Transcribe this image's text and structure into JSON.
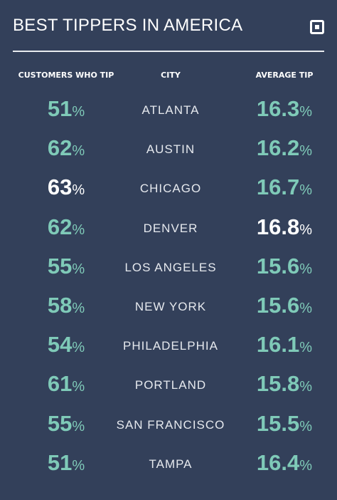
{
  "header": {
    "title": "BEST TIPPERS IN AMERICA"
  },
  "table": {
    "columns": [
      "CUSTOMERS WHO TIP",
      "CITY",
      "AVERAGE TIP"
    ],
    "rows": [
      {
        "customers": {
          "number": "51",
          "unit": "%"
        },
        "city": "ATLANTA",
        "tip": {
          "number": "16.3",
          "unit": "%"
        }
      },
      {
        "customers": {
          "number": "62",
          "unit": "%"
        },
        "city": "AUSTIN",
        "tip": {
          "number": "16.2",
          "unit": "%"
        }
      },
      {
        "customers": {
          "number": "63",
          "unit": "%",
          "highlight": true
        },
        "city": "CHICAGO",
        "tip": {
          "number": "16.7",
          "unit": "%"
        }
      },
      {
        "customers": {
          "number": "62",
          "unit": "%"
        },
        "city": "DENVER",
        "tip": {
          "number": "16.8",
          "unit": "%",
          "highlight": true
        }
      },
      {
        "customers": {
          "number": "55",
          "unit": "%"
        },
        "city": "LOS ANGELES",
        "tip": {
          "number": "15.6",
          "unit": "%"
        }
      },
      {
        "customers": {
          "number": "58",
          "unit": "%"
        },
        "city": "NEW YORK",
        "tip": {
          "number": "15.6",
          "unit": "%"
        }
      },
      {
        "customers": {
          "number": "54",
          "unit": "%"
        },
        "city": "PHILADELPHIA",
        "tip": {
          "number": "16.1",
          "unit": "%"
        }
      },
      {
        "customers": {
          "number": "61",
          "unit": "%"
        },
        "city": "PORTLAND",
        "tip": {
          "number": "15.8",
          "unit": "%"
        }
      },
      {
        "customers": {
          "number": "55",
          "unit": "%"
        },
        "city": "SAN FRANCISCO",
        "tip": {
          "number": "15.5",
          "unit": "%"
        }
      },
      {
        "customers": {
          "number": "51",
          "unit": "%"
        },
        "city": "TAMPA",
        "tip": {
          "number": "16.4",
          "unit": "%"
        }
      }
    ]
  }
}
